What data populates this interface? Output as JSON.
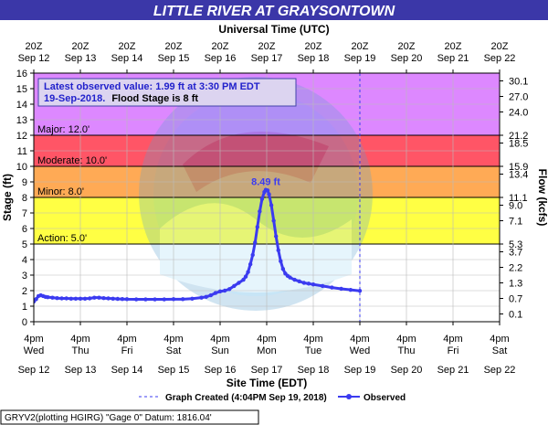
{
  "chart_data": {
    "type": "line",
    "title": "LITTLE  RIVER AT GRAYSONTOWN",
    "top_axis_title": "Universal Time (UTC)",
    "bottom_axis_title": "Site Time (EDT)",
    "left_axis_title": "Stage (ft)",
    "right_axis_title": "Flow (kcfs)",
    "colors": {
      "title_bar": "#3b37a8",
      "major": "#cc66ff",
      "major_band": "#dd88ff",
      "moderate": "#ff5566",
      "minor": "#ffaa55",
      "action": "#ffff44",
      "normal": "#ffffff",
      "observed": "#3b3bf0",
      "created_line": "#3b3bf0"
    },
    "top_ticks": [
      {
        "l1": "20Z",
        "l2": "Sep 12"
      },
      {
        "l1": "20Z",
        "l2": "Sep 13"
      },
      {
        "l1": "20Z",
        "l2": "Sep 14"
      },
      {
        "l1": "20Z",
        "l2": "Sep 15"
      },
      {
        "l1": "20Z",
        "l2": "Sep 16"
      },
      {
        "l1": "20Z",
        "l2": "Sep 17"
      },
      {
        "l1": "20Z",
        "l2": "Sep 18"
      },
      {
        "l1": "20Z",
        "l2": "Sep 19"
      },
      {
        "l1": "20Z",
        "l2": "Sep 20"
      },
      {
        "l1": "20Z",
        "l2": "Sep 21"
      },
      {
        "l1": "20Z",
        "l2": "Sep 22"
      }
    ],
    "bottom_ticks": [
      {
        "l1": "4pm",
        "l2": "Wed",
        "l3": "Sep 12"
      },
      {
        "l1": "4pm",
        "l2": "Thu",
        "l3": "Sep 13"
      },
      {
        "l1": "4pm",
        "l2": "Fri",
        "l3": "Sep 14"
      },
      {
        "l1": "4pm",
        "l2": "Sat",
        "l3": "Sep 15"
      },
      {
        "l1": "4pm",
        "l2": "Sun",
        "l3": "Sep 16"
      },
      {
        "l1": "4pm",
        "l2": "Mon",
        "l3": "Sep 17"
      },
      {
        "l1": "4pm",
        "l2": "Tue",
        "l3": "Sep 18"
      },
      {
        "l1": "4pm",
        "l2": "Wed",
        "l3": "Sep 19"
      },
      {
        "l1": "4pm",
        "l2": "Thu",
        "l3": "Sep 20"
      },
      {
        "l1": "4pm",
        "l2": "Fri",
        "l3": "Sep 21"
      },
      {
        "l1": "4pm",
        "l2": "Sat",
        "l3": "Sep 22"
      }
    ],
    "x_range_days_from_sep12_4pm": [
      0,
      10
    ],
    "y_range_ft": [
      0,
      16
    ],
    "stage_ticks": [
      0,
      1,
      2,
      3,
      4,
      5,
      6,
      7,
      8,
      9,
      10,
      11,
      12,
      13,
      14,
      15,
      16
    ],
    "flow_ticks": [
      {
        "stage": 0.5,
        "label": "0.1"
      },
      {
        "stage": 1.5,
        "label": "0.7"
      },
      {
        "stage": 2.5,
        "label": "1.3"
      },
      {
        "stage": 3.5,
        "label": "2.2"
      },
      {
        "stage": 4.5,
        "label": "3.7"
      },
      {
        "stage": 5.0,
        "label": "5.3"
      },
      {
        "stage": 6.5,
        "label": "7.1"
      },
      {
        "stage": 7.5,
        "label": "9.0"
      },
      {
        "stage": 8.0,
        "label": "11.1"
      },
      {
        "stage": 9.5,
        "label": "13.4"
      },
      {
        "stage": 10.0,
        "label": "15.9"
      },
      {
        "stage": 11.5,
        "label": "18.5"
      },
      {
        "stage": 12.0,
        "label": "21.2"
      },
      {
        "stage": 13.5,
        "label": "24.0"
      },
      {
        "stage": 14.5,
        "label": "27.0"
      },
      {
        "stage": 15.5,
        "label": "30.1"
      }
    ],
    "flood_categories": [
      {
        "name": "Major",
        "label": "Major: 12.0'",
        "from": 12,
        "to": 16,
        "color_key": "major"
      },
      {
        "name": "Moderate",
        "label": "Moderate: 10.0'",
        "from": 10,
        "to": 12,
        "color_key": "moderate"
      },
      {
        "name": "Minor",
        "label": "Minor: 8.0'",
        "from": 8,
        "to": 10,
        "color_key": "minor"
      },
      {
        "name": "Action",
        "label": "Action: 5.0'",
        "from": 5,
        "to": 8,
        "color_key": "action"
      }
    ],
    "info_box": {
      "line1": "Latest observed value: 1.99 ft at 3:30 PM EDT",
      "line2_date": "19-Sep-2018.",
      "line2_rest": "Flood Stage is 8 ft"
    },
    "peak_label": "8.49 ft",
    "peak": {
      "x": 4.98,
      "y": 8.49
    },
    "graph_created_x": 7.0,
    "series": [
      {
        "name": "Observed",
        "x": [
          0.0,
          0.05,
          0.1,
          0.15,
          0.2,
          0.25,
          0.3,
          0.4,
          0.5,
          0.6,
          0.7,
          0.8,
          0.9,
          1.0,
          1.1,
          1.2,
          1.3,
          1.4,
          1.5,
          1.6,
          1.7,
          1.8,
          1.9,
          2.0,
          2.2,
          2.4,
          2.6,
          2.8,
          3.0,
          3.2,
          3.4,
          3.6,
          3.7,
          3.8,
          3.9,
          4.0,
          4.1,
          4.2,
          4.3,
          4.4,
          4.5,
          4.55,
          4.6,
          4.65,
          4.7,
          4.75,
          4.8,
          4.85,
          4.9,
          4.95,
          4.98,
          5.02,
          5.05,
          5.1,
          5.15,
          5.2,
          5.25,
          5.3,
          5.35,
          5.4,
          5.45,
          5.5,
          5.6,
          5.7,
          5.8,
          5.9,
          6.0,
          6.2,
          6.4,
          6.6,
          6.8,
          7.0
        ],
        "y": [
          1.3,
          1.45,
          1.65,
          1.7,
          1.65,
          1.6,
          1.58,
          1.55,
          1.52,
          1.5,
          1.5,
          1.48,
          1.48,
          1.48,
          1.48,
          1.5,
          1.55,
          1.55,
          1.52,
          1.5,
          1.48,
          1.47,
          1.46,
          1.45,
          1.44,
          1.44,
          1.44,
          1.44,
          1.45,
          1.45,
          1.48,
          1.55,
          1.6,
          1.7,
          1.85,
          1.95,
          2.0,
          2.1,
          2.3,
          2.5,
          2.7,
          2.9,
          3.2,
          3.7,
          4.3,
          5.1,
          6.1,
          7.1,
          7.9,
          8.35,
          8.49,
          8.45,
          8.2,
          7.5,
          6.5,
          5.5,
          4.6,
          3.9,
          3.4,
          3.1,
          2.95,
          2.85,
          2.7,
          2.6,
          2.5,
          2.45,
          2.4,
          2.3,
          2.2,
          2.12,
          2.05,
          1.99
        ]
      }
    ],
    "legend": {
      "created": "Graph Created (4:04PM Sep 19, 2018)",
      "observed": "Observed"
    },
    "footer": "GRYV2(plotting HGIRG) \"Gage 0\" Datum: 1816.04'"
  }
}
